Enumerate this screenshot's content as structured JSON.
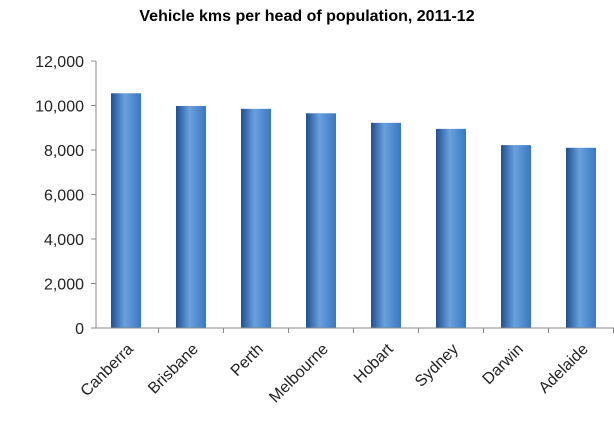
{
  "chart_data": {
    "type": "bar",
    "title": "Vehicle kms per head of population, 2011-12",
    "xlabel": "",
    "ylabel": "",
    "categories": [
      "Canberra",
      "Brisbane",
      "Perth",
      "Melbourne",
      "Hobart",
      "Sydney",
      "Darwin",
      "Adelaide"
    ],
    "values": [
      10550,
      9980,
      9850,
      9650,
      9220,
      8950,
      8220,
      8100
    ],
    "ylim": [
      0,
      12000
    ],
    "yticks": [
      0,
      2000,
      4000,
      6000,
      8000,
      10000,
      12000
    ],
    "ytick_labels": [
      "0",
      "2,000",
      "4,000",
      "6,000",
      "8,000",
      "10,000",
      "12,000"
    ],
    "grid": false,
    "legend": "none",
    "bar_color": "#3a78c2",
    "bar_color_dark": "#1f4f8f",
    "bar_color_light": "#6aa0dd"
  }
}
